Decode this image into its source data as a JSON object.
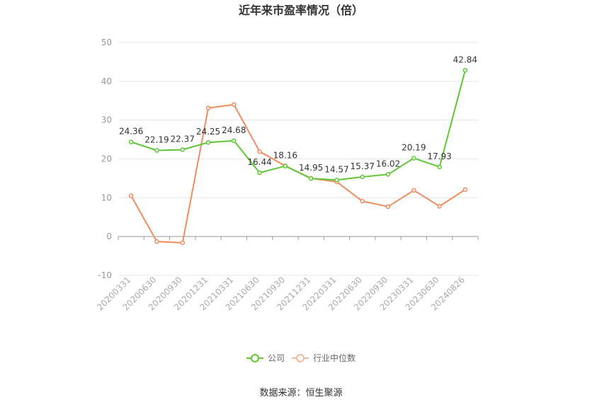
{
  "chart_data": {
    "type": "line",
    "title": "近年来市盈率情况（倍）",
    "x": [
      "20200331",
      "20200630",
      "20200930",
      "20201231",
      "20210331",
      "20210630",
      "20210930",
      "20211231",
      "20220331",
      "20220630",
      "20220930",
      "20230331",
      "20230630",
      "20240826"
    ],
    "ylim": [
      -10,
      50
    ],
    "yticks": [
      -10,
      0,
      10,
      20,
      30,
      40,
      50
    ],
    "series": [
      {
        "name": "公司",
        "color": "#5dc833",
        "values": [
          24.36,
          22.19,
          22.37,
          24.25,
          24.68,
          16.44,
          18.16,
          14.95,
          14.57,
          15.37,
          16.02,
          20.19,
          17.93,
          42.84
        ],
        "labels": [
          "24.36",
          "22.19",
          "22.37",
          "24.25",
          "24.68",
          "16.44",
          "18.16",
          "14.95",
          "14.57",
          "15.37",
          "16.02",
          "20.19",
          "17.93",
          "42.84"
        ]
      },
      {
        "name": "行业中位数",
        "color": "#f08c5e",
        "values": [
          10.5,
          -1.3,
          -1.6,
          33.1,
          34.0,
          21.9,
          18.2,
          15.0,
          14.1,
          9.1,
          7.7,
          11.9,
          7.8,
          12.1
        ]
      }
    ],
    "legend_position": "bottom",
    "grid": true
  },
  "footer": {
    "source": "数据来源：恒生聚源"
  }
}
